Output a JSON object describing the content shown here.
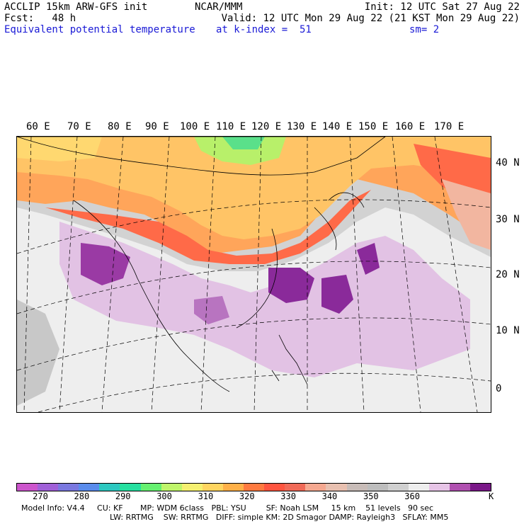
{
  "header": {
    "left1": "ACCLIP 15km ARW-GFS init",
    "center1": "NCAR/MMM",
    "right1": "Init: 12 UTC Sat 27 Aug 22",
    "left2": "Fcst:   48 h",
    "right2": "Valid: 12 UTC Mon 29 Aug 22 (21 KST Mon 29 Aug 22)",
    "field": "Equivalent potential temperature",
    "level": "at k-index =  51",
    "smooth": "sm= 2"
  },
  "lon_labels": [
    "60 E",
    "70 E",
    "80 E",
    "90 E",
    "100 E",
    "110 E",
    "120 E",
    "130 E",
    "140 E",
    "150 E",
    "160 E",
    "170 E"
  ],
  "lat_labels": [
    "40 N",
    "30 N",
    "20 N",
    "10 N",
    "0"
  ],
  "colorbar": {
    "colors": [
      "#cc55cc",
      "#a060d8",
      "#7a78e0",
      "#5a8cec",
      "#2cc8c0",
      "#26e0a0",
      "#66f070",
      "#bff56a",
      "#f5f070",
      "#ffd560",
      "#ffb048",
      "#ff7a40",
      "#ff5540",
      "#f06a58",
      "#f5a890",
      "#e8c0b0",
      "#c8bcb8",
      "#bdbdbd",
      "#d0d0d0",
      "#eeeeee",
      "#e6c4e6",
      "#b050b0",
      "#7a1888"
    ],
    "ticks": [
      "270",
      "280",
      "290",
      "300",
      "310",
      "320",
      "330",
      "340",
      "350",
      "360"
    ],
    "unit": "K"
  },
  "footer": {
    "line1": "Model Info: V4.4     CU: KF       MP: WDM 6class   PBL: YSU        SF: Noah LSM     15 km    51 levels   90 sec",
    "line2": "LW: RRTMG    SW: RRTMG   DIFF: simple KM: 2D Smagor DAMP: Rayleigh3   SFLAY: MM5"
  }
}
